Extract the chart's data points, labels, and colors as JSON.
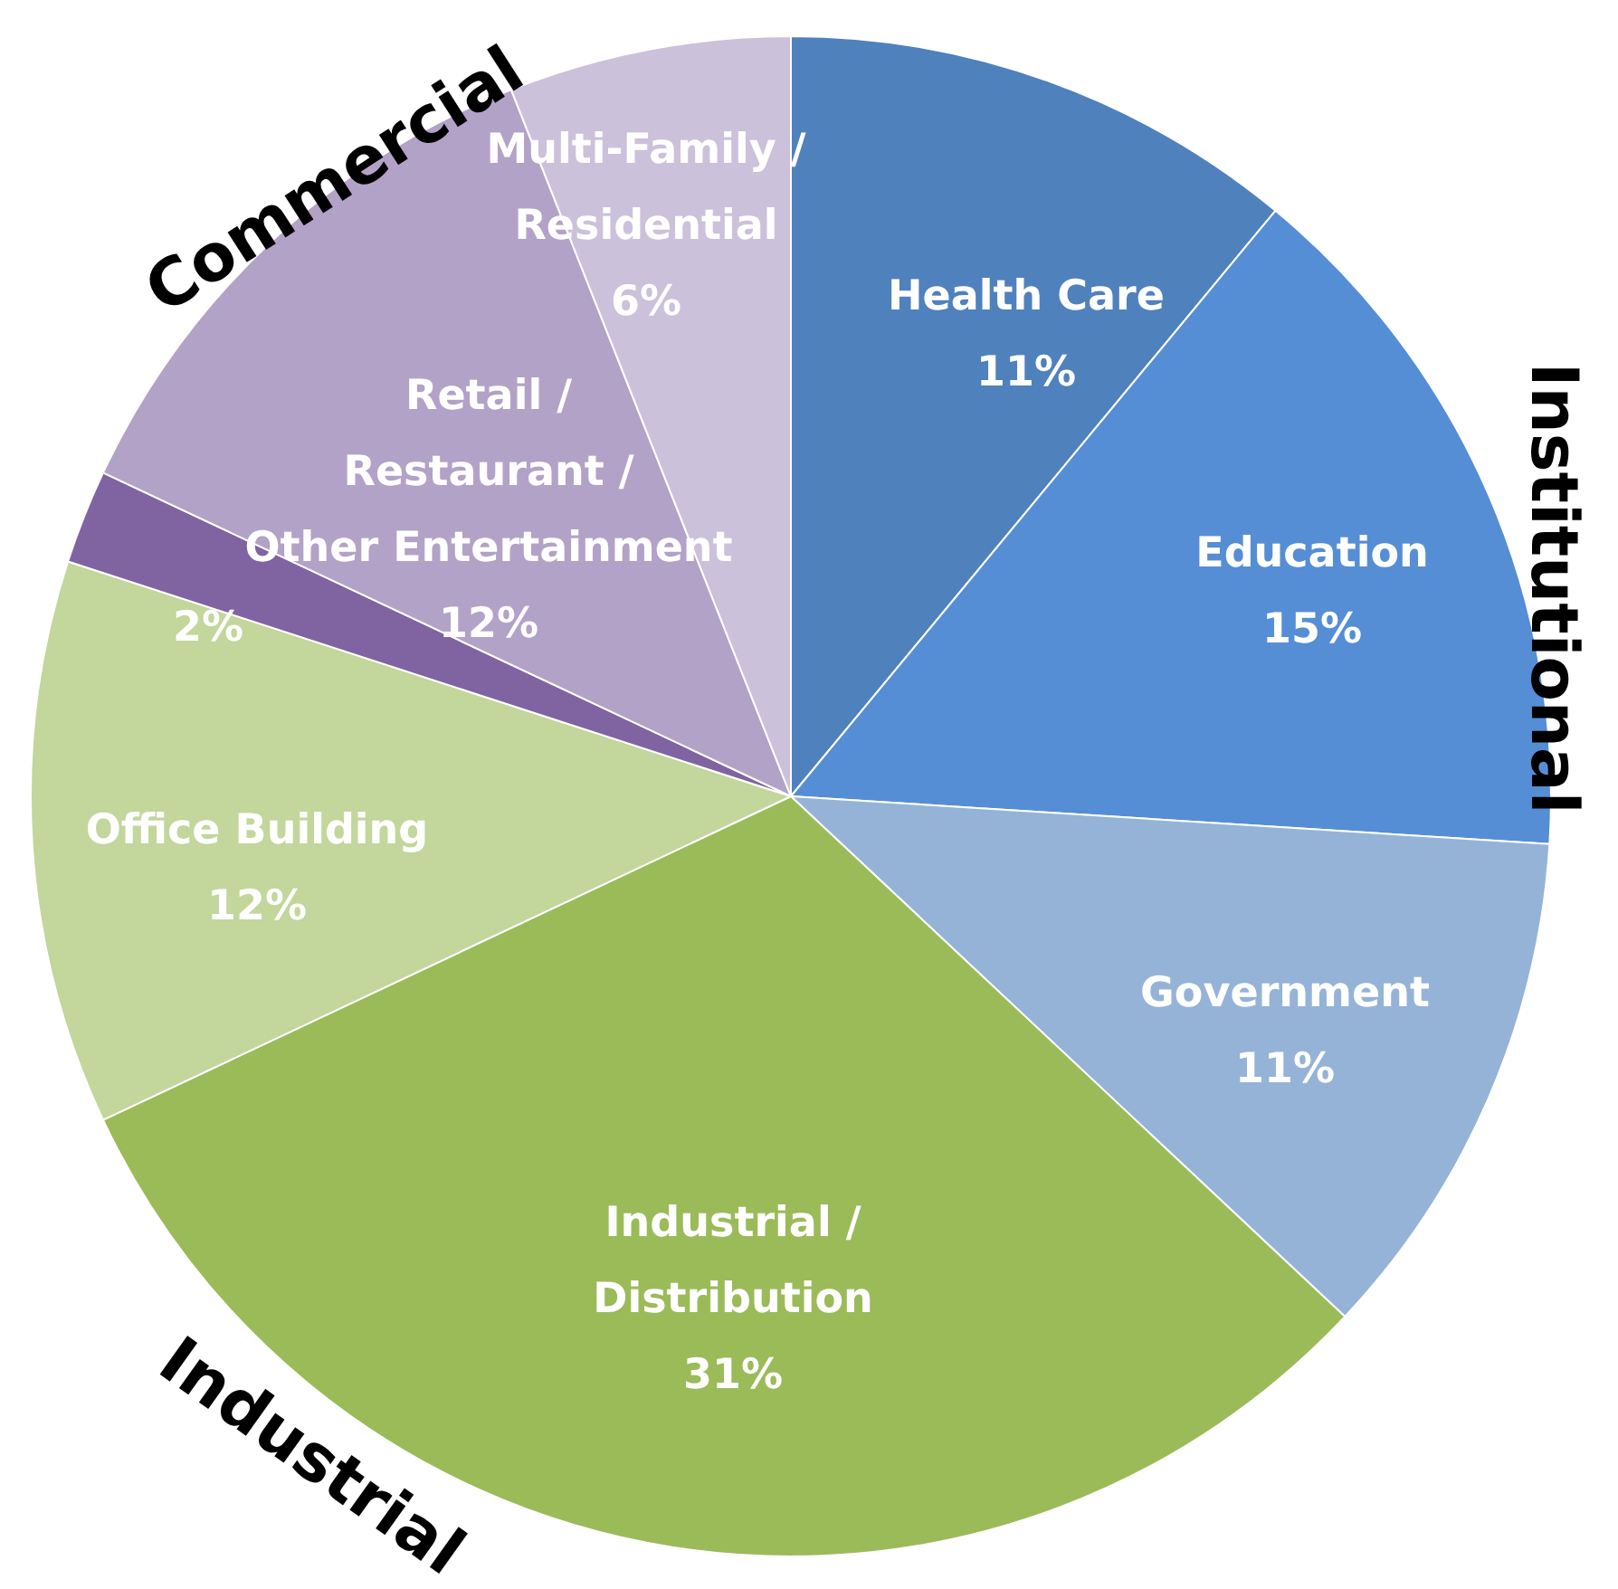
{
  "chart_data": {
    "type": "pie",
    "categories": [
      "Health Care",
      "Education",
      "Government",
      "Industrial / Distribution",
      "Office Building",
      null,
      "Retail / Restaurant / Other Entertainment",
      "Multi-Family / Residential"
    ],
    "values": [
      11,
      15,
      11,
      31,
      12,
      2,
      12,
      6
    ],
    "value_labels": [
      "11%",
      "15%",
      "11%",
      "31%",
      "12%",
      "2%",
      "12%",
      "6%"
    ],
    "colors": [
      "#4f81bd",
      "#558ed5",
      "#95b3d7",
      "#9bbb59",
      "#c3d69b",
      "#8064a2",
      "#b3a2c7",
      "#ccc1da"
    ],
    "annotations": [
      "Commercial",
      "Institutional",
      "Industrial"
    ],
    "legend": false
  }
}
